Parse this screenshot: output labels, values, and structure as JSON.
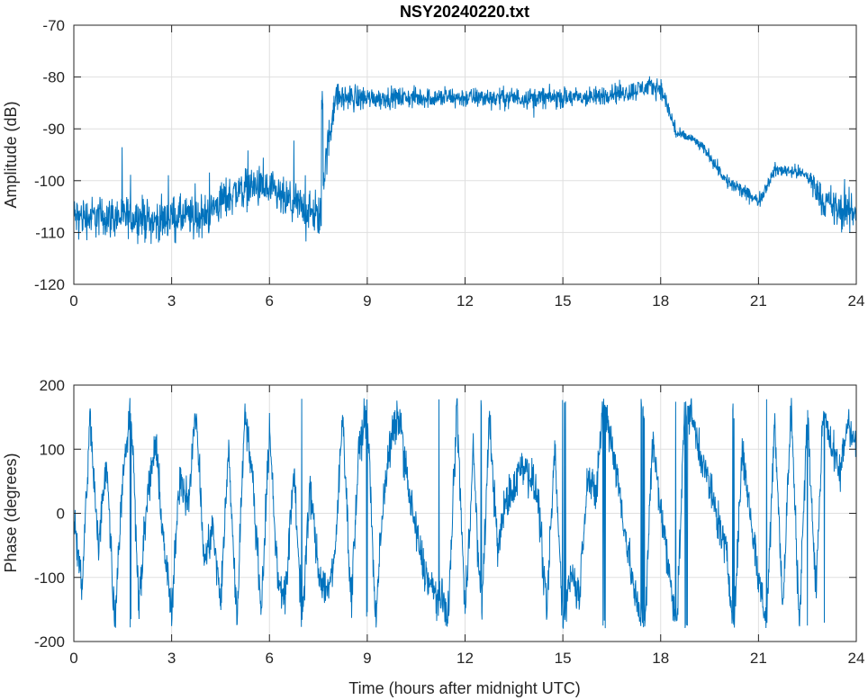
{
  "chart_data": [
    {
      "type": "line",
      "title": "NSY20240220.txt",
      "xlabel": "",
      "ylabel": "Amplitude (dB)",
      "xlim": [
        0,
        24
      ],
      "ylim": [
        -120,
        -70
      ],
      "xticks": [
        "0",
        "3",
        "6",
        "9",
        "12",
        "15",
        "18",
        "21",
        "24"
      ],
      "yticks": [
        "-70",
        "-80",
        "-90",
        "-100",
        "-110",
        "-120"
      ],
      "grid": true,
      "color": "#0072BD",
      "series": [
        {
          "name": "amplitude",
          "x_step_hours": 0.5,
          "mean_values": [
            -107,
            -107,
            -107,
            -107,
            -107,
            -108,
            -107,
            -107,
            -107,
            -104,
            -102,
            -101,
            -102,
            -104,
            -105,
            -107,
            -84,
            -84,
            -84,
            -84,
            -84,
            -84,
            -84,
            -84,
            -84,
            -84,
            -84,
            -84,
            -84,
            -84,
            -84,
            -84,
            -84,
            -83,
            -83,
            -82,
            -82,
            -91,
            -92,
            -95,
            -100,
            -102,
            -104,
            -98,
            -98,
            -99,
            -104,
            -106,
            -106,
            -105,
            -105
          ],
          "noise_db": [
            3,
            3,
            3,
            3,
            3,
            3,
            3,
            3,
            3,
            3,
            3,
            3,
            3,
            3,
            3,
            3,
            2,
            2,
            1.5,
            1.5,
            1.5,
            1.5,
            1.5,
            1.5,
            1.5,
            1.5,
            1.5,
            1.5,
            1.5,
            1.5,
            1.5,
            1.5,
            1.5,
            1.5,
            1.5,
            1.5,
            1.5,
            0.8,
            0.8,
            1,
            1.2,
            1,
            1,
            1,
            1,
            2,
            3,
            3,
            3,
            3,
            3
          ]
        }
      ]
    },
    {
      "type": "line",
      "title": "",
      "xlabel": "Time (hours after midnight UTC)",
      "ylabel": "Phase (degrees)",
      "xlim": [
        0,
        24
      ],
      "ylim": [
        -200,
        200
      ],
      "xticks": [
        "0",
        "3",
        "6",
        "9",
        "12",
        "15",
        "18",
        "21",
        "24"
      ],
      "yticks": [
        "200",
        "100",
        "0",
        "-100",
        "-200"
      ],
      "grid": true,
      "color": "#0072BD",
      "series": [
        {
          "name": "phase",
          "x_step_hours": 0.25,
          "values": [
            0,
            -120,
            150,
            -60,
            90,
            -170,
            60,
            170,
            -140,
            20,
            110,
            -40,
            -160,
            60,
            20,
            160,
            -80,
            -20,
            -140,
            100,
            -170,
            170,
            40,
            -150,
            130,
            -100,
            -130,
            70,
            -170,
            40,
            -90,
            -120,
            -80,
            160,
            -140,
            100,
            170,
            -170,
            30,
            120,
            150,
            40,
            -30,
            -90,
            -120,
            -140,
            -150,
            170,
            -160,
            100,
            -170,
            150,
            -60,
            20,
            40,
            80,
            60,
            20,
            -160,
            100,
            -170,
            -90,
            -130,
            60,
            20,
            180,
            110,
            30,
            -60,
            -140,
            -190,
            110,
            10,
            -90,
            -170,
            180,
            140,
            90,
            40,
            -10,
            -60,
            -180,
            100,
            0,
            -100,
            -170,
            150,
            -150,
            170,
            -170,
            160,
            -120,
            170,
            100,
            60,
            150,
            100,
            -80
          ],
          "noise_deg": 25
        }
      ]
    }
  ]
}
